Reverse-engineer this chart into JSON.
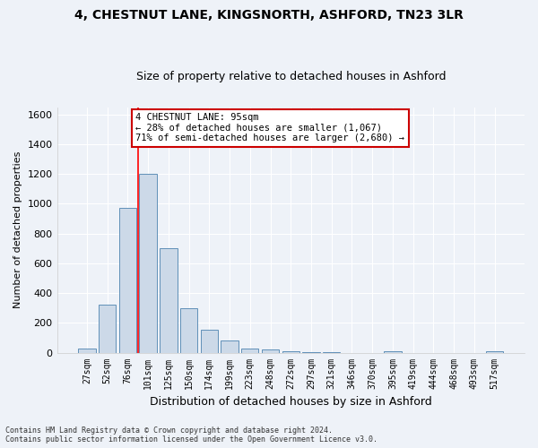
{
  "title_line1": "4, CHESTNUT LANE, KINGSNORTH, ASHFORD, TN23 3LR",
  "title_line2": "Size of property relative to detached houses in Ashford",
  "xlabel": "Distribution of detached houses by size in Ashford",
  "ylabel": "Number of detached properties",
  "footnote": "Contains HM Land Registry data © Crown copyright and database right 2024.\nContains public sector information licensed under the Open Government Licence v3.0.",
  "categories": [
    "27sqm",
    "52sqm",
    "76sqm",
    "101sqm",
    "125sqm",
    "150sqm",
    "174sqm",
    "199sqm",
    "223sqm",
    "248sqm",
    "272sqm",
    "297sqm",
    "321sqm",
    "346sqm",
    "370sqm",
    "395sqm",
    "419sqm",
    "444sqm",
    "468sqm",
    "493sqm",
    "517sqm"
  ],
  "values": [
    25,
    320,
    970,
    1200,
    700,
    300,
    155,
    80,
    30,
    20,
    10,
    5,
    5,
    0,
    0,
    10,
    0,
    0,
    0,
    0,
    10
  ],
  "bar_color": "#ccd9e8",
  "bar_edge_color": "#6090b8",
  "red_line_x": 2.5,
  "red_line_label": "4 CHESTNUT LANE: 95sqm",
  "annotation_line2": "← 28% of detached houses are smaller (1,067)",
  "annotation_line3": "71% of semi-detached houses are larger (2,680) →",
  "ylim": [
    0,
    1650
  ],
  "yticks": [
    0,
    200,
    400,
    600,
    800,
    1000,
    1200,
    1400,
    1600
  ],
  "background_color": "#eef2f8",
  "grid_color": "#ffffff",
  "annotation_box_facecolor": "#ffffff",
  "annotation_box_edge": "#cc0000",
  "title1_fontsize": 10,
  "title2_fontsize": 9,
  "ylabel_fontsize": 8,
  "xlabel_fontsize": 9,
  "tick_fontsize": 7,
  "footnote_fontsize": 6
}
